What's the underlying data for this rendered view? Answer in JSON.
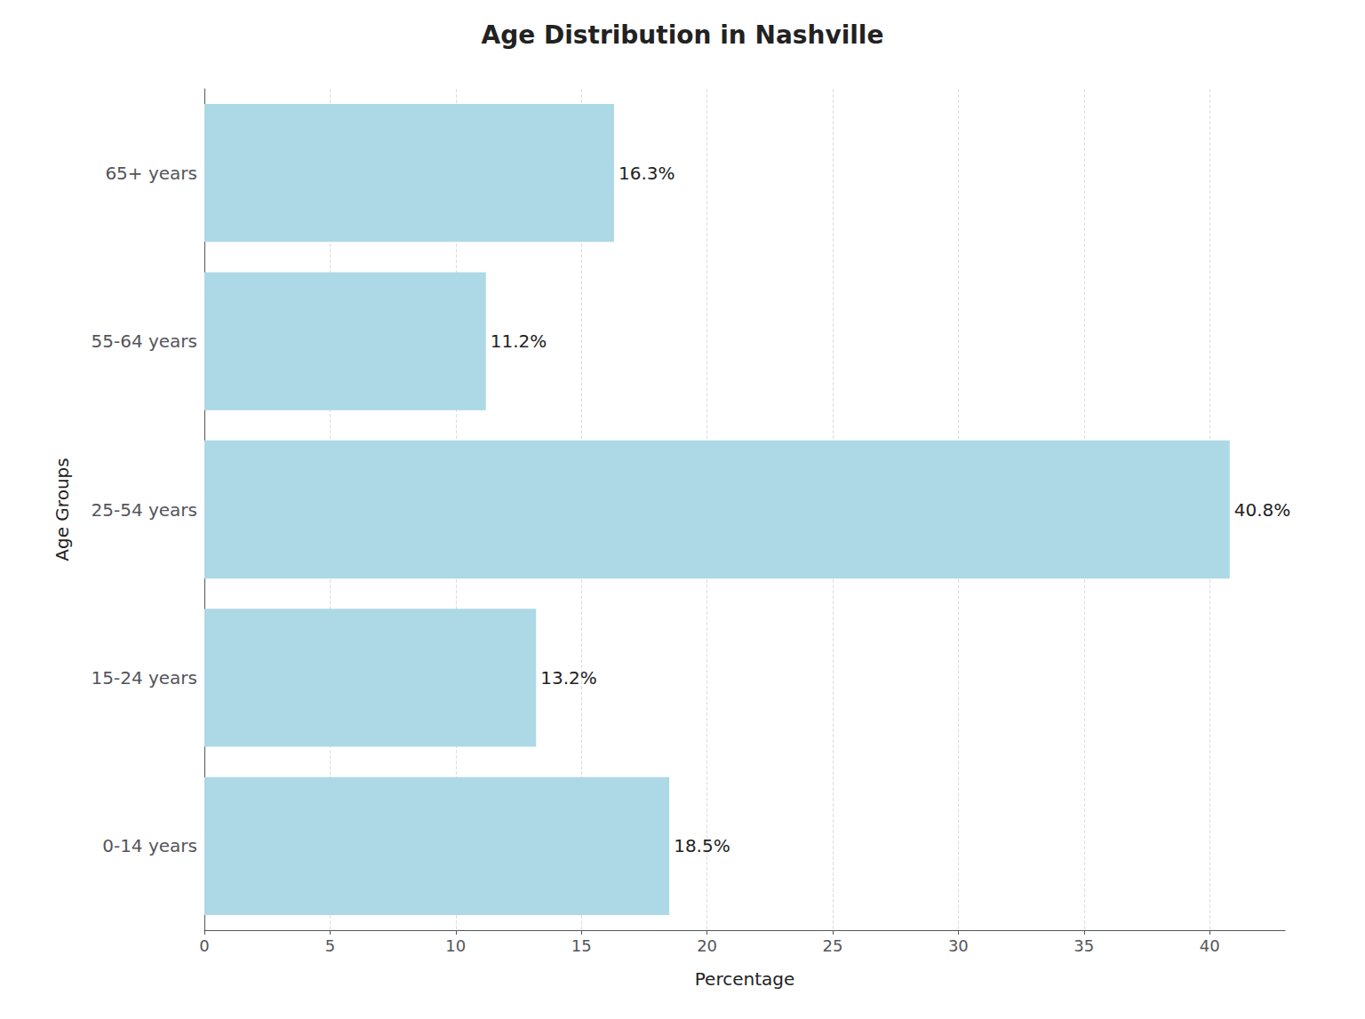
{
  "chart_data": {
    "type": "bar",
    "orientation": "horizontal",
    "title": "Age Distribution in Nashville",
    "xlabel": "Percentage",
    "ylabel": "Age Groups",
    "categories": [
      "0-14 years",
      "15-24 years",
      "25-54 years",
      "55-64 years",
      "65+ years"
    ],
    "values": [
      18.5,
      13.2,
      40.8,
      11.2,
      16.3
    ],
    "value_labels": [
      "18.5%",
      "13.2%",
      "40.8%",
      "11.2%",
      "16.3%"
    ],
    "data_labels": true,
    "color": "#add8e6",
    "xlim": [
      0,
      43
    ],
    "xticks": [
      0,
      5,
      10,
      15,
      20,
      25,
      30,
      35,
      40
    ],
    "grid": true
  }
}
